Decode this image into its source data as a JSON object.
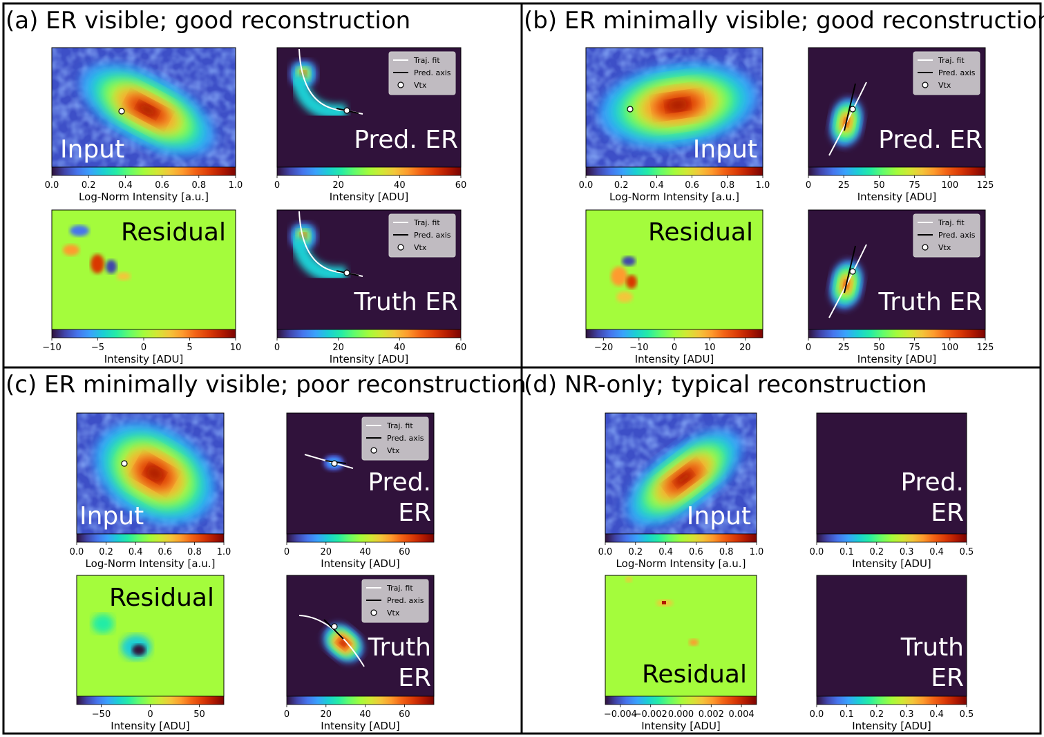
{
  "figure": {
    "panels": [
      {
        "id": "a",
        "title": "(a) ER visible; good reconstruction",
        "input": {
          "label": "Input",
          "cbar_label": "Log-Norm Intensity [a.u.]",
          "ticks": [
            "0.0",
            "0.2",
            "0.4",
            "0.6",
            "0.8",
            "1.0"
          ],
          "vertex": true
        },
        "pred": {
          "label": "Pred. ER",
          "cbar_label": "Intensity [ADU]",
          "ticks": [
            "0",
            "20",
            "40",
            "60"
          ],
          "legend": true
        },
        "residual": {
          "label": "Residual",
          "cbar_label": "Intensity [ADU]",
          "ticks": [
            "−10",
            "−5",
            "0",
            "5",
            "10"
          ]
        },
        "truth": {
          "label": "Truth ER",
          "cbar_label": "Intensity [ADU]",
          "ticks": [
            "0",
            "20",
            "40",
            "60"
          ],
          "legend": true
        }
      },
      {
        "id": "b",
        "title": "(b) ER minimally visible; good reconstruction",
        "input": {
          "label": "Input",
          "cbar_label": "Log-Norm Intensity [a.u.]",
          "ticks": [
            "0.0",
            "0.2",
            "0.4",
            "0.6",
            "0.8",
            "1.0"
          ],
          "vertex": true
        },
        "pred": {
          "label": "Pred. ER",
          "cbar_label": "Intensity [ADU]",
          "ticks": [
            "0",
            "25",
            "50",
            "75",
            "100",
            "125"
          ],
          "legend": true
        },
        "residual": {
          "label": "Residual",
          "cbar_label": "Intensity [ADU]",
          "ticks": [
            "−20",
            "−10",
            "0",
            "10",
            "20"
          ]
        },
        "truth": {
          "label": "Truth ER",
          "cbar_label": "Intensity [ADU]",
          "ticks": [
            "0",
            "25",
            "50",
            "75",
            "100",
            "125"
          ],
          "legend": true
        }
      },
      {
        "id": "c",
        "title": "(c) ER minimally visible; poor reconstruction",
        "input": {
          "label": "Input",
          "cbar_label": "Log-Norm Intensity [a.u.]",
          "ticks": [
            "0.0",
            "0.2",
            "0.4",
            "0.6",
            "0.8",
            "1.0"
          ],
          "vertex": true
        },
        "pred": {
          "label": "Pred.\nER",
          "cbar_label": "Intensity [ADU]",
          "ticks": [
            "0",
            "20",
            "40",
            "60"
          ],
          "legend": true
        },
        "residual": {
          "label": "Residual",
          "cbar_label": "Intensity [ADU]",
          "ticks": [
            "−50",
            "0",
            "50"
          ]
        },
        "truth": {
          "label": "Truth\nER",
          "cbar_label": "Intensity [ADU]",
          "ticks": [
            "0",
            "20",
            "40",
            "60"
          ],
          "legend": true
        }
      },
      {
        "id": "d",
        "title": "(d) NR-only; typical reconstruction",
        "input": {
          "label": "Input",
          "cbar_label": "Log-Norm Intensity [a.u.]",
          "ticks": [
            "0.0",
            "0.2",
            "0.4",
            "0.6",
            "0.8",
            "1.0"
          ],
          "vertex": false
        },
        "pred": {
          "label": "Pred.\nER",
          "cbar_label": "Intensity [ADU]",
          "ticks": [
            "0.0",
            "0.1",
            "0.2",
            "0.3",
            "0.4",
            "0.5"
          ],
          "legend": false
        },
        "residual": {
          "label": "Residual",
          "cbar_label": "Intensity [ADU]",
          "ticks": [
            "−0.004",
            "−0.002",
            "0.000",
            "0.002",
            "0.004"
          ]
        },
        "truth": {
          "label": "Truth\nER",
          "cbar_label": "Intensity [ADU]",
          "ticks": [
            "0.0",
            "0.1",
            "0.2",
            "0.3",
            "0.4",
            "0.5"
          ],
          "legend": false
        }
      }
    ],
    "legend_entries": [
      "Traj. fit",
      "Pred. axis",
      "Vtx"
    ]
  },
  "chart_data": [
    {
      "type": "heatmap",
      "panel": "a",
      "subplot": "Input",
      "xlabel": "Log-Norm Intensity [a.u.]",
      "range": [
        0.0,
        1.0
      ]
    },
    {
      "type": "heatmap",
      "panel": "a",
      "subplot": "Pred. ER",
      "xlabel": "Intensity [ADU]",
      "range": [
        0,
        60
      ]
    },
    {
      "type": "heatmap",
      "panel": "a",
      "subplot": "Residual",
      "xlabel": "Intensity [ADU]",
      "range": [
        -10,
        10
      ]
    },
    {
      "type": "heatmap",
      "panel": "a",
      "subplot": "Truth ER",
      "xlabel": "Intensity [ADU]",
      "range": [
        0,
        60
      ]
    },
    {
      "type": "heatmap",
      "panel": "b",
      "subplot": "Input",
      "xlabel": "Log-Norm Intensity [a.u.]",
      "range": [
        0.0,
        1.0
      ]
    },
    {
      "type": "heatmap",
      "panel": "b",
      "subplot": "Pred. ER",
      "xlabel": "Intensity [ADU]",
      "range": [
        0,
        125
      ]
    },
    {
      "type": "heatmap",
      "panel": "b",
      "subplot": "Residual",
      "xlabel": "Intensity [ADU]",
      "range": [
        -25,
        25
      ]
    },
    {
      "type": "heatmap",
      "panel": "b",
      "subplot": "Truth ER",
      "xlabel": "Intensity [ADU]",
      "range": [
        0,
        125
      ]
    },
    {
      "type": "heatmap",
      "panel": "c",
      "subplot": "Input",
      "xlabel": "Log-Norm Intensity [a.u.]",
      "range": [
        0.0,
        1.0
      ]
    },
    {
      "type": "heatmap",
      "panel": "c",
      "subplot": "Pred. ER",
      "xlabel": "Intensity [ADU]",
      "range": [
        0,
        75
      ]
    },
    {
      "type": "heatmap",
      "panel": "c",
      "subplot": "Residual",
      "xlabel": "Intensity [ADU]",
      "range": [
        -75,
        75
      ]
    },
    {
      "type": "heatmap",
      "panel": "c",
      "subplot": "Truth ER",
      "xlabel": "Intensity [ADU]",
      "range": [
        0,
        75
      ]
    },
    {
      "type": "heatmap",
      "panel": "d",
      "subplot": "Input",
      "xlabel": "Log-Norm Intensity [a.u.]",
      "range": [
        0.0,
        1.0
      ]
    },
    {
      "type": "heatmap",
      "panel": "d",
      "subplot": "Pred. ER",
      "xlabel": "Intensity [ADU]",
      "range": [
        0.0,
        0.5
      ]
    },
    {
      "type": "heatmap",
      "panel": "d",
      "subplot": "Residual",
      "xlabel": "Intensity [ADU]",
      "range": [
        -0.005,
        0.005
      ]
    },
    {
      "type": "heatmap",
      "panel": "d",
      "subplot": "Truth ER",
      "xlabel": "Intensity [ADU]",
      "range": [
        0.0,
        0.5
      ]
    }
  ],
  "colors": {
    "background_dark": "#30123b",
    "residual_zero": "#a4fc3c",
    "frame": "#000000",
    "legend_bg": "#d9d9d9"
  }
}
